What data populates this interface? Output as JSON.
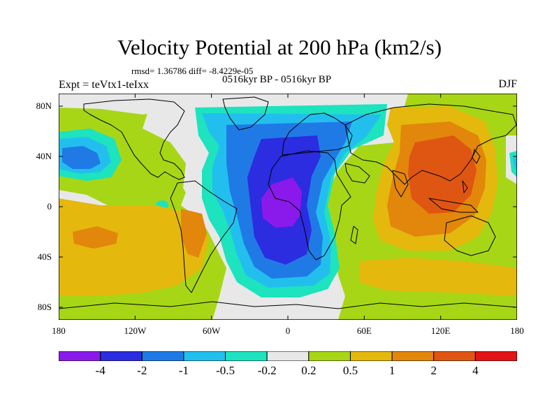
{
  "title": "Velocity Potential at 200 hPa (km2/s)",
  "stats": "rmsd= 1.36786 diff= -8.4229e-05",
  "experiment": "Expt = teVtx1-teIxx",
  "period": "0516kyr BP - 0516kyr BP",
  "season": "DJF",
  "map": {
    "projection": "cylindrical equidistant",
    "lon_range": [
      -180,
      180
    ],
    "lat_range": [
      -90,
      90
    ],
    "y_ticks": [
      {
        "label": "80N",
        "lat": 80
      },
      {
        "label": "40N",
        "lat": 40
      },
      {
        "label": "0",
        "lat": 0
      },
      {
        "label": "40S",
        "lat": -40
      },
      {
        "label": "80S",
        "lat": -80
      }
    ],
    "x_ticks": [
      {
        "label": "180",
        "lon": -180
      },
      {
        "label": "120W",
        "lon": -120
      },
      {
        "label": "60W",
        "lon": -60
      },
      {
        "label": "0",
        "lon": 0
      },
      {
        "label": "60E",
        "lon": 60
      },
      {
        "label": "120E",
        "lon": 120
      },
      {
        "label": "180",
        "lon": 180
      }
    ]
  },
  "colorbar": {
    "colors": [
      "#8a1aeb",
      "#2c2ce0",
      "#1f7ae6",
      "#22bfee",
      "#1de3bf",
      "#e8e8e8",
      "#a7d616",
      "#e4b80c",
      "#e2860c",
      "#df5512",
      "#e21414"
    ],
    "labels": [
      "-4",
      "-2",
      "-1",
      "-0.5",
      "-0.2",
      "0.2",
      "0.5",
      "1",
      "2",
      "4"
    ]
  }
}
